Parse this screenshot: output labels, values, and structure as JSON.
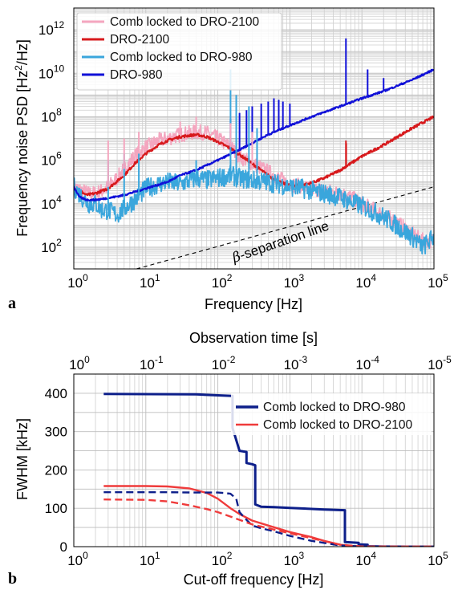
{
  "chart_data": [
    {
      "panel_label": "a",
      "type": "line",
      "xlabel": "Frequency [Hz]",
      "ylabel_main": "Frequency noise PSD [Hz",
      "ylabel_sup": "2",
      "ylabel_end": "/Hz]",
      "x_scale": "log",
      "y_scale": "log",
      "xlim": [
        1,
        100000
      ],
      "ylim": [
        10,
        10000000000000
      ],
      "grid": true,
      "legend_position": "top-left",
      "x_ticks": [
        {
          "base": "10",
          "exp": "0",
          "value": 1
        },
        {
          "base": "10",
          "exp": "1",
          "value": 10
        },
        {
          "base": "10",
          "exp": "2",
          "value": 100
        },
        {
          "base": "10",
          "exp": "3",
          "value": 1000
        },
        {
          "base": "10",
          "exp": "4",
          "value": 10000
        },
        {
          "base": "10",
          "exp": "5",
          "value": 100000
        }
      ],
      "y_ticks": [
        {
          "base": "10",
          "exp": "2",
          "value": 100
        },
        {
          "base": "10",
          "exp": "4",
          "value": 10000
        },
        {
          "base": "10",
          "exp": "6",
          "value": 1000000
        },
        {
          "base": "10",
          "exp": "8",
          "value": 100000000
        },
        {
          "base": "10",
          "exp": "10",
          "value": 10000000000
        },
        {
          "base": "10",
          "exp": "12",
          "value": 1000000000000
        }
      ],
      "annotation": {
        "text_greek": "β",
        "text": "-separation line"
      },
      "series": [
        {
          "name": "Comb locked to DRO-2100",
          "color": "#f4a6bf",
          "x": [
            1,
            1.3,
            1.6,
            2,
            2.5,
            3,
            4,
            5,
            7,
            10,
            15,
            20,
            30,
            50,
            70,
            100,
            150,
            200,
            300,
            500,
            700,
            1000,
            1500,
            2000,
            3000,
            5000,
            7000,
            10000,
            15000,
            20000,
            30000,
            50000,
            70000,
            100000
          ],
          "y": [
            60000,
            40000,
            30000,
            30000,
            40000,
            60000,
            150000,
            400000,
            1500000,
            4000000,
            8000000,
            10000000,
            15000000,
            20000000,
            18000000,
            10000000,
            4000000,
            1500000,
            700000,
            300000,
            150000,
            80000,
            60000,
            50000,
            40000,
            30000,
            20000,
            10000,
            5000,
            3000,
            1500,
            400,
            200,
            200
          ]
        },
        {
          "name": "DRO-2100",
          "color": "#d7191c",
          "x": [
            1,
            1.2,
            1.5,
            2,
            3,
            5,
            7,
            10,
            15,
            20,
            30,
            50,
            70,
            100,
            150,
            200,
            300,
            500,
            700,
            1000,
            1500,
            2000,
            3000,
            5000,
            10000,
            20000,
            50000,
            100000
          ],
          "y": [
            60000,
            40000,
            25000,
            30000,
            50000,
            200000,
            700000,
            2000000,
            5000000,
            8000000,
            12000000,
            15000000,
            12000000,
            7000000,
            3500000,
            1800000,
            700000,
            200000,
            100000,
            70000,
            70000,
            90000,
            150000,
            350000,
            1500000,
            5000000,
            30000000,
            100000000
          ]
        },
        {
          "name": "Comb locked to DRO-980",
          "color": "#3aa6dc",
          "x": [
            1,
            1.3,
            1.6,
            2,
            2.5,
            3,
            4,
            5,
            7,
            10,
            15,
            20,
            30,
            50,
            70,
            100,
            150,
            200,
            300,
            500,
            700,
            1000,
            1500,
            2000,
            3000,
            5000,
            7000,
            10000,
            15000,
            20000,
            30000,
            50000,
            70000,
            100000
          ],
          "y": [
            60000,
            20000,
            10000,
            10000,
            5000,
            5000,
            3000,
            6000,
            15000,
            50000,
            80000,
            100000,
            80000,
            150000,
            120000,
            150000,
            200000,
            150000,
            120000,
            100000,
            80000,
            60000,
            50000,
            40000,
            30000,
            20000,
            12000,
            8000,
            4000,
            2500,
            1000,
            300,
            100,
            300
          ]
        },
        {
          "name": "DRO-980",
          "color": "#1010d8",
          "x": [
            1,
            1.2,
            1.5,
            2,
            3,
            5,
            10,
            20,
            30,
            50,
            100,
            200,
            500,
            1000,
            2000,
            5000,
            10000,
            20000,
            50000,
            100000
          ],
          "y": [
            60000,
            20000,
            15000,
            15000,
            18000,
            25000,
            50000,
            100000,
            200000,
            350000,
            1000000,
            3000000,
            15000000,
            40000000,
            100000000,
            300000000,
            700000000,
            1500000000,
            5000000000,
            15000000000
          ]
        }
      ],
      "spikes": [
        {
          "series": "DRO-980",
          "x": [
            6000,
            12000,
            20000
          ],
          "peak": [
            400000000000,
            15000000000,
            6000000000
          ]
        },
        {
          "series": "DRO-980",
          "x": [
            150,
            200,
            250,
            300,
            400,
            500,
            600,
            700,
            800,
            1000
          ],
          "peak": [
            80000000,
            150000000,
            200000000,
            300000000,
            400000000,
            500000000,
            700000000,
            600000000,
            500000000,
            400000000
          ]
        },
        {
          "series": "Comb locked to DRO-980",
          "x": [
            3,
            5,
            8,
            50,
            150,
            180,
            270,
            350
          ],
          "peak": [
            1000000,
            2000000,
            2000000,
            1000000,
            15000000000,
            1000000000,
            300000000,
            30000000
          ]
        },
        {
          "series": "Comb locked to DRO-2100",
          "x": [
            3,
            5,
            8,
            30,
            50,
            150,
            300
          ],
          "peak": [
            8000000,
            10000000,
            20000000,
            60000000,
            100000000,
            50000000,
            20000000
          ]
        },
        {
          "series": "DRO-2100",
          "x": [
            6000,
            6050
          ],
          "peak": [
            8000000,
            6000000
          ]
        }
      ],
      "reference_line": {
        "style": "dashed",
        "color": "#000000",
        "x": [
          1,
          100000
        ],
        "y": [
          1.6,
          60000
        ]
      }
    },
    {
      "panel_label": "b",
      "type": "line",
      "xlabel": "Cut-off frequency [Hz]",
      "ylabel": "FWHM [kHz]",
      "top_xlabel": "Observation time [s]",
      "x_scale": "log",
      "xlim": [
        1,
        100000
      ],
      "ylim": [
        0,
        450
      ],
      "grid": true,
      "legend_position": "top-right",
      "x_ticks": [
        {
          "base": "10",
          "exp": "0",
          "value": 1
        },
        {
          "base": "10",
          "exp": "1",
          "value": 10
        },
        {
          "base": "10",
          "exp": "2",
          "value": 100
        },
        {
          "base": "10",
          "exp": "3",
          "value": 1000
        },
        {
          "base": "10",
          "exp": "4",
          "value": 10000
        },
        {
          "base": "10",
          "exp": "5",
          "value": 100000
        }
      ],
      "top_x_ticks": [
        {
          "base": "10",
          "exp": "0"
        },
        {
          "base": "10",
          "exp": "-1"
        },
        {
          "base": "10",
          "exp": "-2"
        },
        {
          "base": "10",
          "exp": "-3"
        },
        {
          "base": "10",
          "exp": "-4"
        },
        {
          "base": "10",
          "exp": "-5"
        }
      ],
      "y_ticks": [
        "0",
        "100",
        "200",
        "300",
        "400"
      ],
      "series": [
        {
          "name": "Comb locked to DRO-980",
          "color": "#0d1f8a",
          "style": "solid",
          "x": [
            2.6,
            50,
            160,
            160,
            200,
            250,
            250,
            300,
            330,
            330,
            400,
            600,
            1000,
            3000,
            5800,
            5800,
            9000,
            9000,
            12000,
            12000,
            20000,
            100000
          ],
          "y": [
            398,
            397,
            393,
            310,
            250,
            247,
            218,
            215,
            212,
            110,
            104,
            103,
            101,
            97,
            95,
            12,
            10,
            6,
            5,
            1,
            0.3,
            0
          ]
        },
        {
          "name": "Comb locked to DRO-2100",
          "color": "#ef3b3b",
          "style": "solid",
          "x": [
            2.6,
            10,
            20,
            40,
            70,
            100,
            150,
            200,
            300,
            500,
            1000,
            2000,
            3000,
            5000,
            7000,
            10000,
            20000,
            100000
          ],
          "y": [
            158,
            158,
            157,
            152,
            140,
            125,
            100,
            85,
            68,
            55,
            38,
            25,
            15,
            5,
            2,
            0.5,
            0,
            0
          ]
        },
        {
          "color": "#0d1f8a",
          "style": "dashed",
          "x": [
            2.6,
            20,
            50,
            100,
            120,
            150,
            180,
            200,
            250,
            300,
            400,
            600,
            1000,
            2000,
            5000,
            10000,
            100000
          ],
          "y": [
            142,
            142,
            141,
            141,
            140,
            138,
            125,
            90,
            70,
            55,
            48,
            40,
            28,
            15,
            3,
            0.5,
            0
          ]
        },
        {
          "color": "#ef3b3b",
          "style": "dashed",
          "x": [
            2.6,
            10,
            20,
            40,
            70,
            100,
            200,
            300,
            500,
            1000,
            2000,
            5000,
            10000,
            100000
          ],
          "y": [
            123,
            122,
            118,
            108,
            98,
            90,
            70,
            58,
            48,
            35,
            22,
            5,
            0.5,
            0
          ]
        }
      ]
    }
  ]
}
